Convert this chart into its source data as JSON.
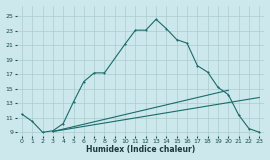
{
  "xlabel": "Humidex (Indice chaleur)",
  "bg_color": "#cce8ec",
  "grid_color": "#aacccc",
  "line_color": "#1a6b6b",
  "x_ticks": [
    0,
    1,
    2,
    3,
    4,
    5,
    6,
    7,
    8,
    9,
    10,
    11,
    12,
    13,
    14,
    15,
    16,
    17,
    18,
    19,
    20,
    21,
    22,
    23
  ],
  "ylim": [
    8.5,
    26.5
  ],
  "xlim": [
    -0.5,
    23.5
  ],
  "y_ticks": [
    9,
    11,
    13,
    15,
    17,
    19,
    21,
    23,
    25
  ],
  "curve1_x": [
    0,
    1,
    2,
    3,
    4,
    5,
    6,
    7,
    8,
    10,
    11,
    12,
    13,
    14,
    15,
    16,
    17,
    18,
    19,
    20,
    21,
    22,
    23
  ],
  "curve1_y": [
    11.5,
    10.5,
    9.0,
    9.2,
    10.2,
    13.2,
    16.0,
    17.2,
    17.2,
    21.2,
    23.1,
    23.1,
    24.6,
    23.3,
    21.8,
    21.3,
    18.2,
    17.3,
    15.2,
    14.2,
    11.4,
    9.5,
    9.0
  ],
  "curve2_x": [
    3,
    23
  ],
  "curve2_y": [
    9.1,
    13.8
  ],
  "curve3_x": [
    3,
    20
  ],
  "curve3_y": [
    9.1,
    14.8
  ]
}
